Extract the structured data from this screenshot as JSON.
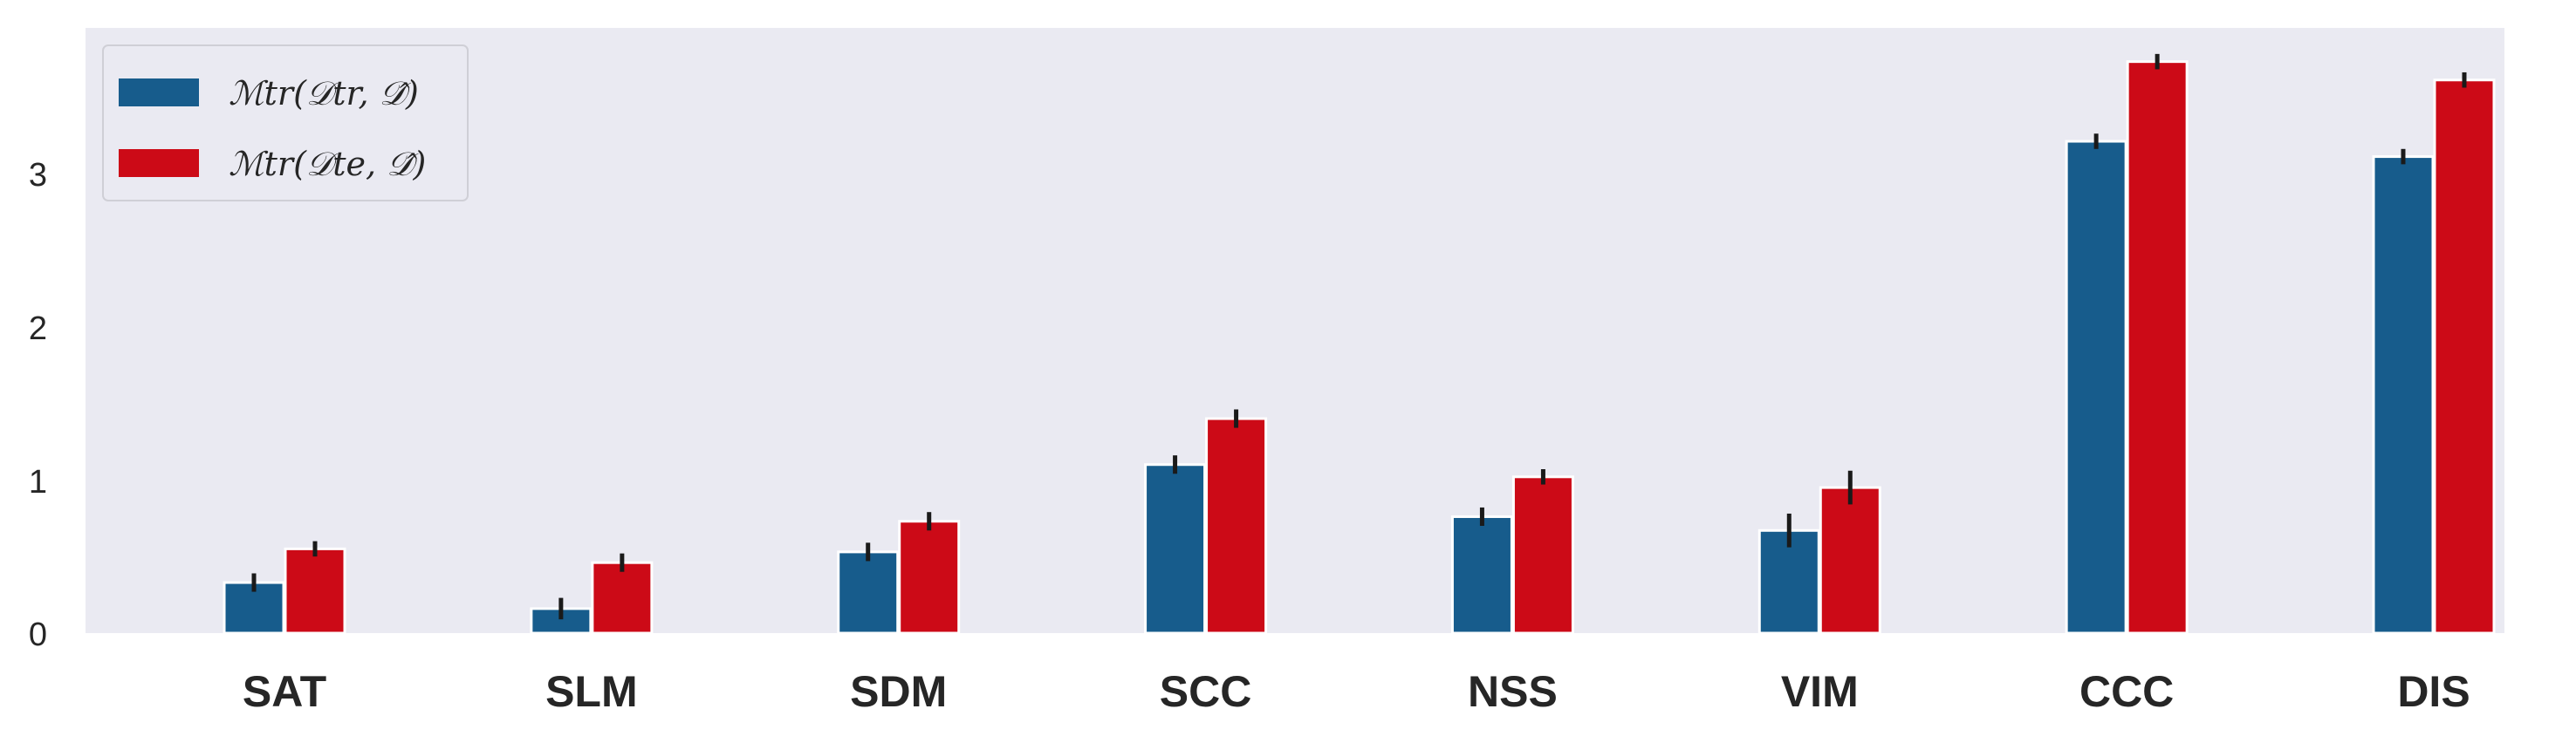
{
  "chart_data": {
    "type": "bar",
    "categories": [
      "SAT",
      "SLM",
      "SDM",
      "SCC",
      "NSS",
      "VIM",
      "CCC",
      "DIS"
    ],
    "series": [
      {
        "name": "ℳtr(𝒟tr, 𝒟̂)",
        "color": "#175C8C",
        "values": [
          0.33,
          0.16,
          0.53,
          1.1,
          0.76,
          0.67,
          3.21,
          3.11
        ],
        "errors": [
          0.06,
          0.07,
          0.06,
          0.06,
          0.06,
          0.11,
          0.05,
          0.05
        ]
      },
      {
        "name": "ℳtr(𝒟te, 𝒟̂)",
        "color": "#CC0A17",
        "values": [
          0.55,
          0.46,
          0.73,
          1.4,
          1.02,
          0.95,
          3.73,
          3.61
        ],
        "errors": [
          0.05,
          0.06,
          0.06,
          0.06,
          0.05,
          0.11,
          0.05,
          0.05
        ]
      }
    ],
    "yticks": [
      "0",
      "1",
      "2",
      "3"
    ],
    "ylim": [
      0,
      3.95
    ],
    "grid": false,
    "legend_position": "top-left",
    "background": "#EAEAF2"
  }
}
